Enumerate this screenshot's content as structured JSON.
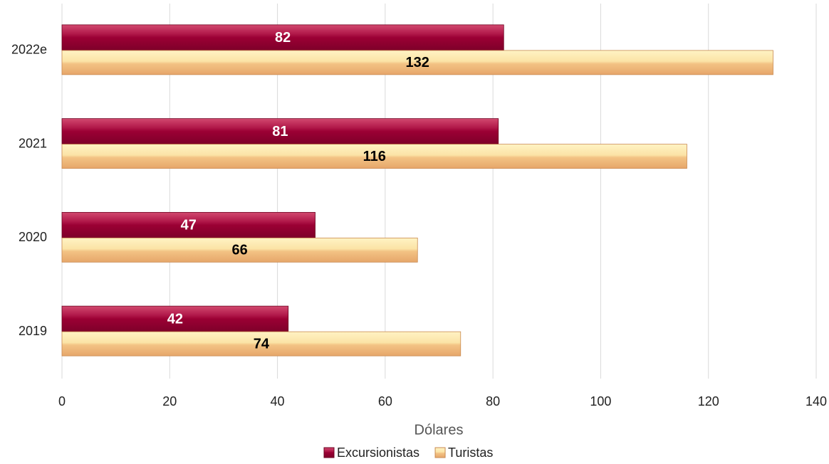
{
  "chart_data": {
    "type": "hbar",
    "categories": [
      "2019",
      "2020",
      "2021",
      "2022e"
    ],
    "series": [
      {
        "name": "Excursionistas",
        "color": "#9b0034",
        "values": [
          42,
          47,
          81,
          82
        ]
      },
      {
        "name": "Turistas",
        "color": "#f3c384",
        "values": [
          74,
          66,
          116,
          132
        ]
      }
    ],
    "xlabel": "Dólares",
    "xlim": [
      0,
      140
    ],
    "xticks": [
      0,
      20,
      40,
      60,
      80,
      100,
      120,
      140
    ],
    "grid": true,
    "legend": "bottom"
  }
}
